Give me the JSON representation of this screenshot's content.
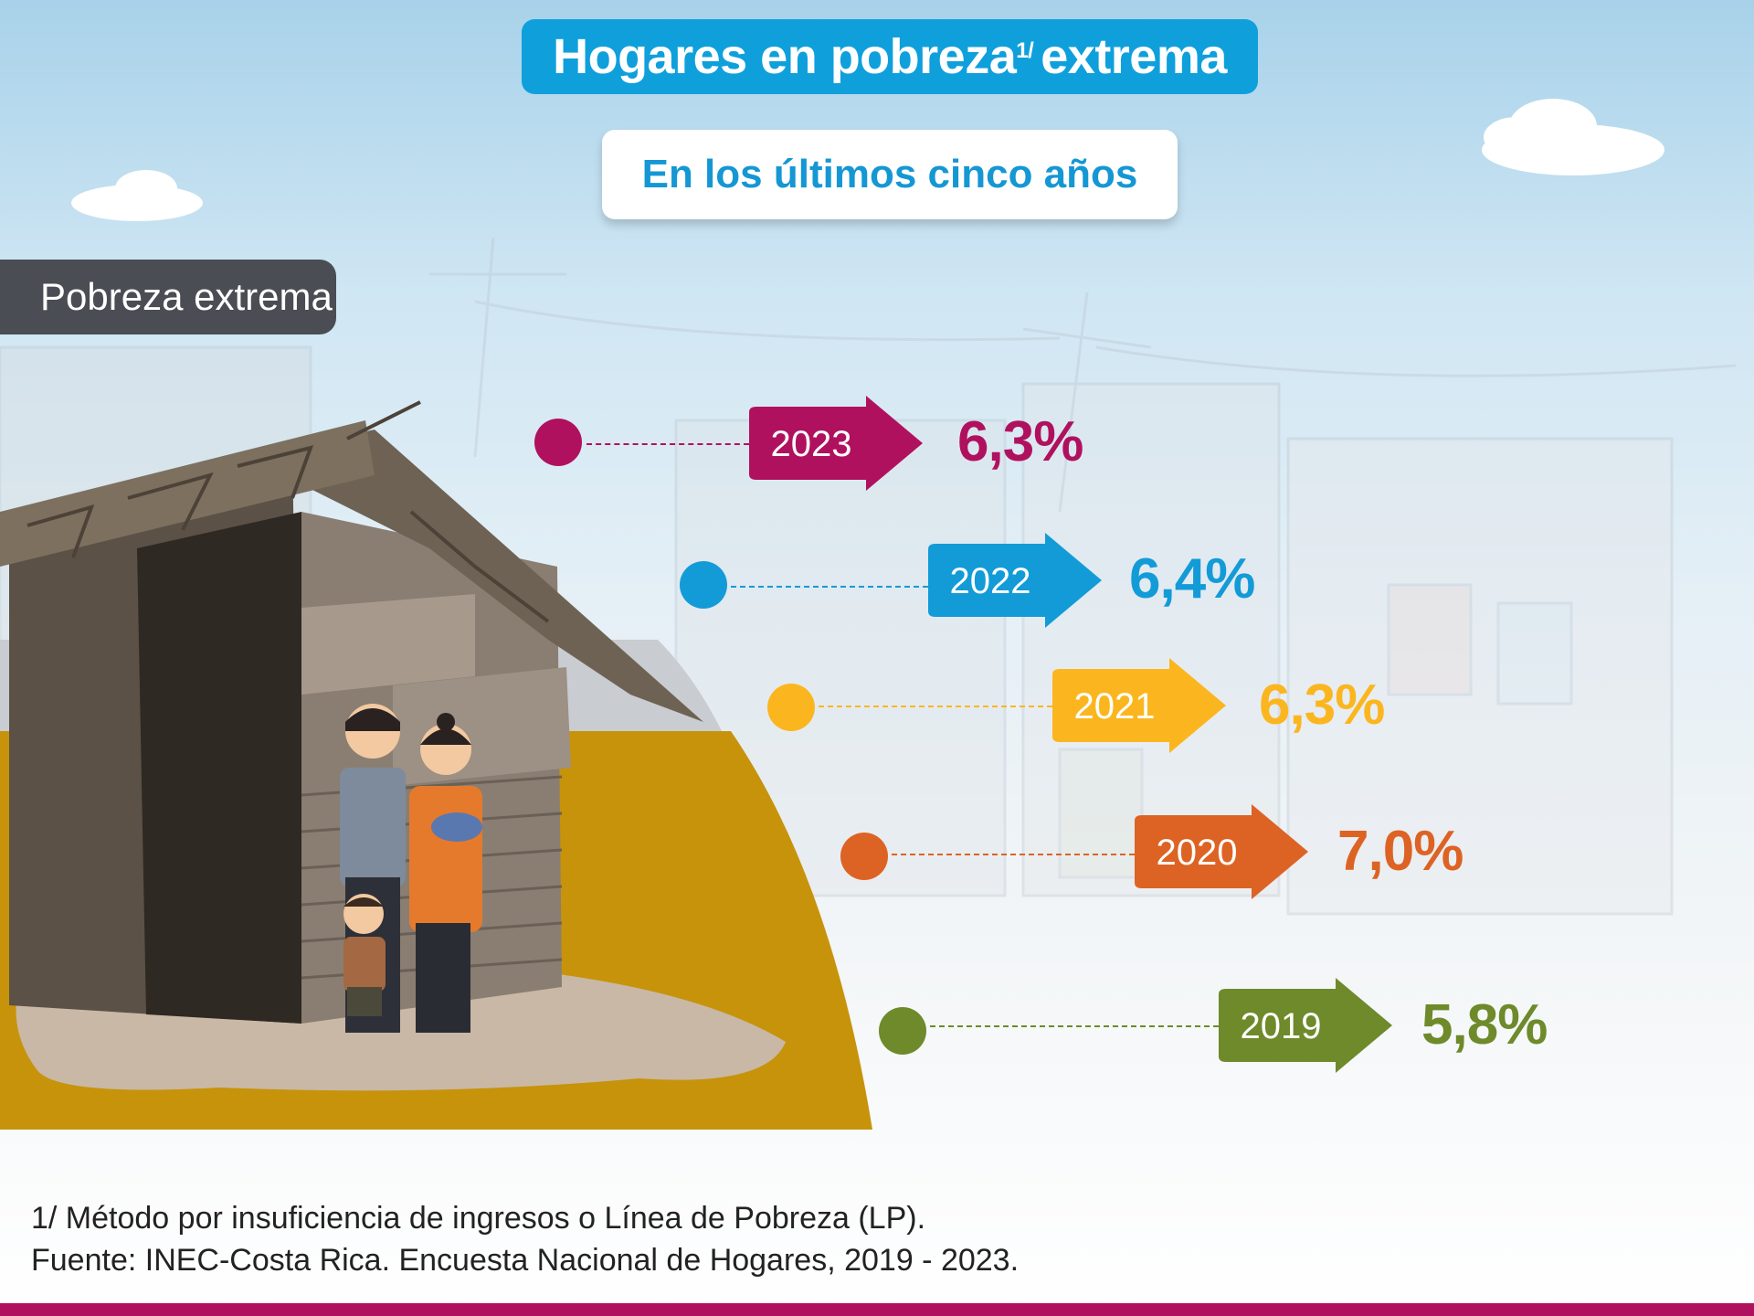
{
  "header": {
    "title_main": "Hogares en pobreza",
    "title_sup": "1/",
    "title_end": "extrema",
    "subtitle": "En los últimos cinco años"
  },
  "section_label": "Pobreza extrema",
  "chart_data": {
    "type": "table",
    "categories": [
      "2023",
      "2022",
      "2021",
      "2020",
      "2019"
    ],
    "values": [
      6.3,
      6.4,
      6.3,
      7.0,
      5.8
    ],
    "value_labels": [
      "6,3%",
      "6,4%",
      "6,3%",
      "7,0%",
      "5,8%"
    ],
    "colors": [
      "#b0115f",
      "#139bd8",
      "#fbb61f",
      "#dd6324",
      "#6e8a2a"
    ]
  },
  "footnote": {
    "line1": "1/ Método por insuficiencia de ingresos o Línea de Pobreza (LP).",
    "line2": "Fuente: INEC-Costa Rica. Encuesta Nacional de Hogares, 2019 - 2023."
  }
}
